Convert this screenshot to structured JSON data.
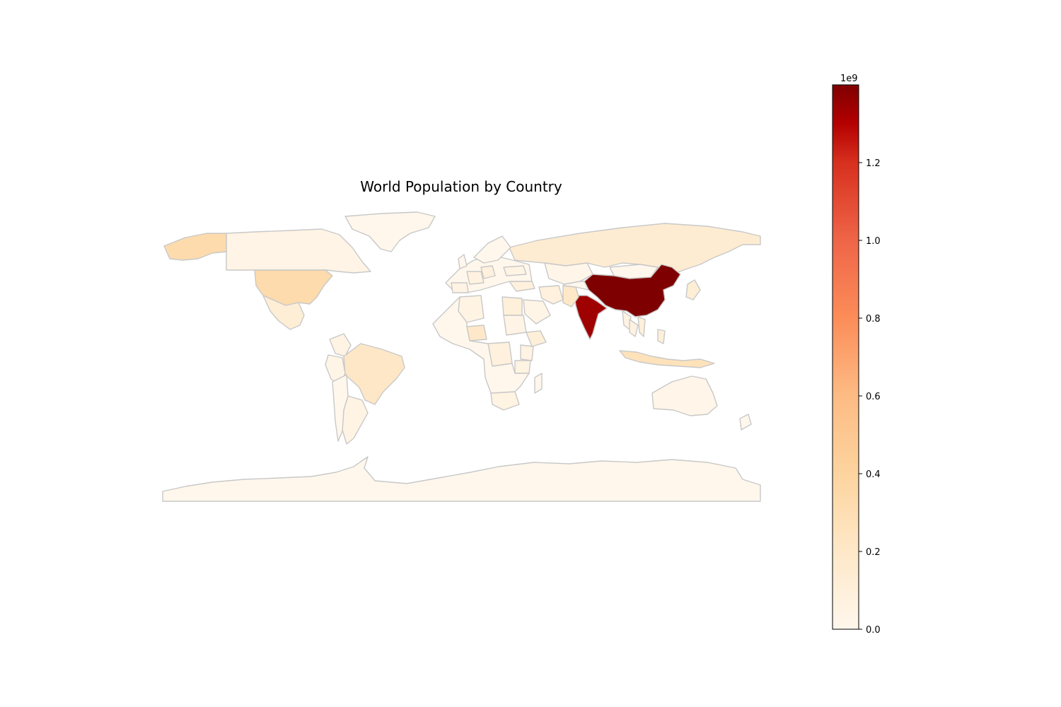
{
  "chart_data": {
    "type": "choropleth",
    "title": "World Population by Country",
    "colormap": "OrRd",
    "colorbar": {
      "range": [
        0,
        1400000000
      ],
      "ticks": [
        0.0,
        0.2,
        0.4,
        0.6,
        0.8,
        1.0,
        1.2
      ],
      "tick_labels": [
        "0.0",
        "0.2",
        "0.4",
        "0.6",
        "0.8",
        "1.0",
        "1.2"
      ],
      "offset_label": "1e9",
      "placement": "right"
    },
    "border_color": "#c8c8c8",
    "country_values": [
      {
        "country": "China",
        "population": 1400000000
      },
      {
        "country": "India",
        "population": 1340000000
      },
      {
        "country": "United States of America",
        "population": 330000000
      },
      {
        "country": "Indonesia",
        "population": 265000000
      },
      {
        "country": "Brazil",
        "population": 210000000
      },
      {
        "country": "Pakistan",
        "population": 205000000
      },
      {
        "country": "Nigeria",
        "population": 195000000
      },
      {
        "country": "Bangladesh",
        "population": 165000000
      },
      {
        "country": "Russia",
        "population": 145000000
      },
      {
        "country": "Mexico",
        "population": 125000000
      },
      {
        "country": "Japan",
        "population": 126000000
      },
      {
        "country": "Ethiopia",
        "population": 108000000
      },
      {
        "country": "Philippines",
        "population": 106000000
      },
      {
        "country": "Egypt",
        "population": 98000000
      },
      {
        "country": "Vietnam",
        "population": 96000000
      },
      {
        "country": "Dem. Rep. Congo",
        "population": 84000000
      },
      {
        "country": "Iran",
        "population": 82000000
      },
      {
        "country": "Turkey",
        "population": 82000000
      },
      {
        "country": "Germany",
        "population": 83000000
      },
      {
        "country": "Thailand",
        "population": 69000000
      },
      {
        "country": "France",
        "population": 67000000
      },
      {
        "country": "Tanzania",
        "population": 56000000
      },
      {
        "country": "South Africa",
        "population": 57000000
      },
      {
        "country": "Myanmar",
        "population": 54000000
      },
      {
        "country": "Kenya",
        "population": 51000000
      },
      {
        "country": "Colombia",
        "population": 49000000
      },
      {
        "country": "Spain",
        "population": 47000000
      },
      {
        "country": "Argentina",
        "population": 44000000
      },
      {
        "country": "Sudan",
        "population": 41000000
      },
      {
        "country": "Algeria",
        "population": 42000000
      },
      {
        "country": "Ukraine",
        "population": 42000000
      },
      {
        "country": "Canada",
        "population": 37000000
      },
      {
        "country": "Saudi Arabia",
        "population": 33000000
      },
      {
        "country": "Peru",
        "population": 32000000
      },
      {
        "country": "Kazakhstan",
        "population": 18000000
      },
      {
        "country": "Australia",
        "population": 25000000
      },
      {
        "country": "Mongolia",
        "population": 3200000
      },
      {
        "country": "Greenland",
        "population": 56000
      },
      {
        "country": "Antarctica",
        "population": 0
      }
    ]
  }
}
